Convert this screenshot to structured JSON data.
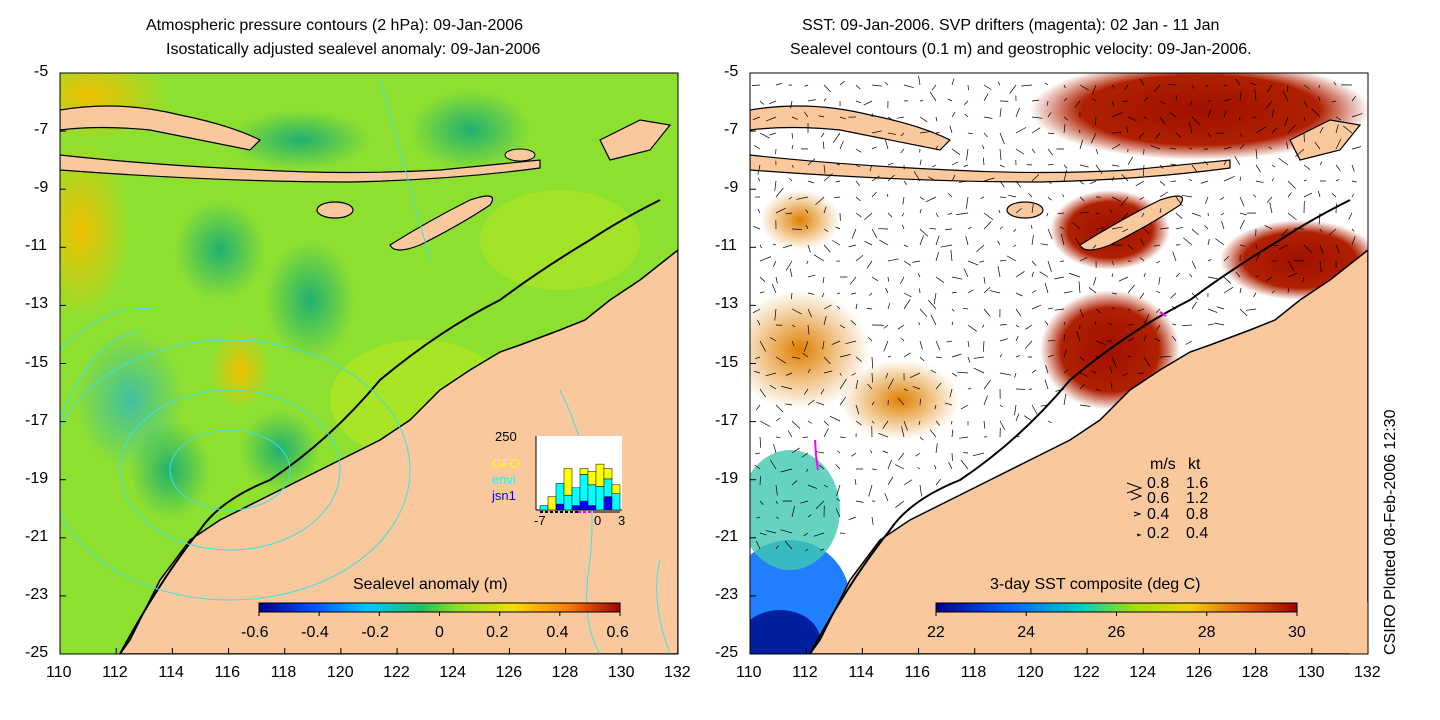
{
  "left_panel": {
    "title_line1": "Atmospheric pressure contours (2 hPa): 09-Jan-2006",
    "title_line2": "Isostatically adjusted sealevel anomaly: 09-Jan-2006",
    "colorbar_title": "Sealevel anomaly (m)",
    "colorbar_ticks": [
      "-0.6",
      "-0.4",
      "-0.2",
      "0",
      "0.2",
      "0.4",
      "0.6"
    ],
    "inset": {
      "ymax_label": "250",
      "legend": [
        {
          "label": "GFO",
          "color": "#ffff00"
        },
        {
          "label": "envi",
          "color": "#00ffff"
        },
        {
          "label": "jsn1",
          "color": "#0000ff"
        }
      ],
      "xticks": [
        "-7",
        "0",
        "3"
      ],
      "bars": [
        {
          "gfo": 0,
          "envi": 15,
          "jsn1": 0
        },
        {
          "gfo": 45,
          "envi": 0,
          "jsn1": 0
        },
        {
          "gfo": 0,
          "envi": 70,
          "jsn1": 20
        },
        {
          "gfo": 90,
          "envi": 50,
          "jsn1": 0
        },
        {
          "gfo": 0,
          "envi": 60,
          "jsn1": 15
        },
        {
          "gfo": 20,
          "envi": 90,
          "jsn1": 30
        },
        {
          "gfo": 45,
          "envi": 70,
          "jsn1": 15
        },
        {
          "gfo": 75,
          "envi": 80,
          "jsn1": 0
        },
        {
          "gfo": 35,
          "envi": 60,
          "jsn1": 45
        },
        {
          "gfo": 30,
          "envi": 55,
          "jsn1": 0
        }
      ]
    }
  },
  "right_panel": {
    "title_line1": "SST: 09-Jan-2006. SVP drifters (magenta): 02 Jan - 11 Jan",
    "title_line2": "Sealevel contours (0.1 m) and geostrophic velocity: 09-Jan-2006.",
    "colorbar_title": "3-day SST composite (deg C)",
    "colorbar_ticks": [
      "22",
      "24",
      "26",
      "28",
      "30"
    ],
    "velocity_legend": {
      "header_ms": "m/s",
      "header_kt": "kt",
      "rows": [
        {
          "ms": "0.8",
          "kt": "1.6"
        },
        {
          "ms": "0.6",
          "kt": "1.2"
        },
        {
          "ms": "0.4",
          "kt": "0.8"
        },
        {
          "ms": "0.2",
          "kt": "0.4"
        }
      ]
    }
  },
  "axes": {
    "x_ticks": [
      "110",
      "112",
      "114",
      "116",
      "118",
      "120",
      "122",
      "124",
      "126",
      "128",
      "130",
      "132"
    ],
    "y_ticks": [
      "-5",
      "-7",
      "-9",
      "-11",
      "-13",
      "-15",
      "-17",
      "-19",
      "-21",
      "-23",
      "-25"
    ],
    "lon_range": [
      110,
      132
    ],
    "lat_range": [
      -25,
      -5
    ]
  },
  "credit": "CSIRO Plotted 08-Feb-2006 12:30",
  "colors": {
    "land": "#f9c89c",
    "coast": "#000000",
    "pressure_contour": "#40e0e0",
    "sst_warm": "#a01000",
    "drifter": "#ff00ff"
  }
}
